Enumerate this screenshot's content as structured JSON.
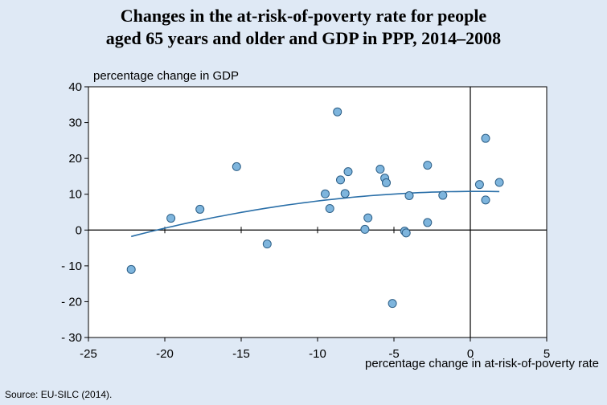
{
  "chart_data": {
    "type": "scatter",
    "title_line1": "Changes in the at-risk-of-poverty rate for people",
    "title_line2": "aged 65 years and older and GDP in PPP, 2014–2008",
    "xlabel": "percentage change in at-risk-of-poverty rate",
    "ylabel": "percentage change in GDP",
    "source": "Source: EU-SILC (2014).",
    "xlim": [
      -25,
      5
    ],
    "ylim": [
      -30,
      40
    ],
    "xticks": [
      -25,
      -20,
      -15,
      -10,
      -5,
      0,
      5
    ],
    "yticks": [
      40,
      30,
      20,
      10,
      0,
      -10,
      -20,
      -30
    ],
    "xtick_labels": [
      "-25",
      "-20",
      "-15",
      "-10",
      "-5",
      "0",
      "5"
    ],
    "ytick_labels": [
      "40",
      "30",
      "20",
      "10",
      "0",
      "- 10",
      "- 20",
      "- 30"
    ],
    "points": [
      {
        "x": -22.2,
        "y": -11
      },
      {
        "x": -19.6,
        "y": 3.3
      },
      {
        "x": -17.7,
        "y": 5.8
      },
      {
        "x": -15.3,
        "y": 17.7
      },
      {
        "x": -13.3,
        "y": -3.9
      },
      {
        "x": -9.5,
        "y": 10.1
      },
      {
        "x": -9.2,
        "y": 6.0
      },
      {
        "x": -8.7,
        "y": 33.0
      },
      {
        "x": -8.5,
        "y": 14.0
      },
      {
        "x": -8.2,
        "y": 10.2
      },
      {
        "x": -8.0,
        "y": 16.3
      },
      {
        "x": -6.9,
        "y": 0.2
      },
      {
        "x": -6.7,
        "y": 3.4
      },
      {
        "x": -5.9,
        "y": 17.0
      },
      {
        "x": -5.6,
        "y": 14.5
      },
      {
        "x": -5.5,
        "y": 13.2
      },
      {
        "x": -5.1,
        "y": -20.5
      },
      {
        "x": -4.3,
        "y": -0.3
      },
      {
        "x": -4.2,
        "y": -0.8
      },
      {
        "x": -4.0,
        "y": 9.6
      },
      {
        "x": -2.8,
        "y": 18.1
      },
      {
        "x": -2.8,
        "y": 2.1
      },
      {
        "x": -1.8,
        "y": 9.7
      },
      {
        "x": 0.6,
        "y": 12.7
      },
      {
        "x": 1.0,
        "y": 25.6
      },
      {
        "x": 1.0,
        "y": 8.4
      },
      {
        "x": 1.9,
        "y": 13.3
      }
    ],
    "trendline": {
      "type": "quadratic",
      "x_range": [
        -22.2,
        1.9
      ],
      "y_at_start": -1.8,
      "peak_x": 0.5,
      "peak_y": 10.8
    },
    "colors": {
      "point_fill": "#7eb5dd",
      "point_stroke": "#2c5e86",
      "trendline": "#2a6fa8",
      "background": "#dfe9f5",
      "plot_area": "#ffffff"
    }
  }
}
